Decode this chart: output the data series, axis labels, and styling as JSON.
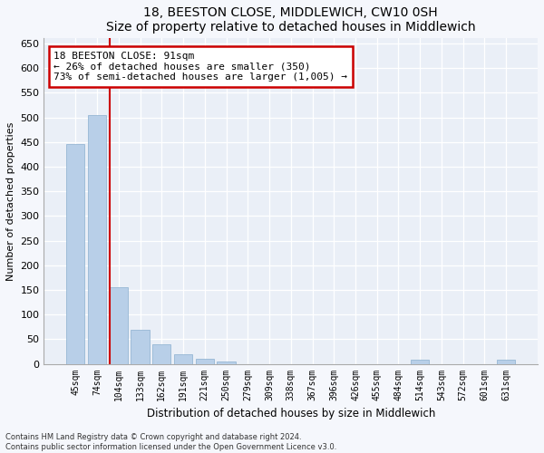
{
  "title1": "18, BEESTON CLOSE, MIDDLEWICH, CW10 0SH",
  "title2": "Size of property relative to detached houses in Middlewich",
  "xlabel": "Distribution of detached houses by size in Middlewich",
  "ylabel": "Number of detached properties",
  "categories": [
    "45sqm",
    "74sqm",
    "104sqm",
    "133sqm",
    "162sqm",
    "191sqm",
    "221sqm",
    "250sqm",
    "279sqm",
    "309sqm",
    "338sqm",
    "367sqm",
    "396sqm",
    "426sqm",
    "455sqm",
    "484sqm",
    "514sqm",
    "543sqm",
    "572sqm",
    "601sqm",
    "631sqm"
  ],
  "values": [
    445,
    505,
    155,
    70,
    40,
    20,
    10,
    5,
    0,
    0,
    0,
    0,
    0,
    0,
    0,
    0,
    8,
    0,
    0,
    0,
    8
  ],
  "bar_color": "#b8cfe8",
  "bar_edge_color": "#8aafcf",
  "vline_color": "#cc0000",
  "annotation_line1": "18 BEESTON CLOSE: 91sqm",
  "annotation_line2": "← 26% of detached houses are smaller (350)",
  "annotation_line3": "73% of semi-detached houses are larger (1,005) →",
  "annotation_box_color": "#ffffff",
  "annotation_box_edge": "#cc0000",
  "ylim": [
    0,
    660
  ],
  "yticks": [
    0,
    50,
    100,
    150,
    200,
    250,
    300,
    350,
    400,
    450,
    500,
    550,
    600,
    650
  ],
  "footer1": "Contains HM Land Registry data © Crown copyright and database right 2024.",
  "footer2": "Contains public sector information licensed under the Open Government Licence v3.0.",
  "bg_color": "#eaeff7",
  "plot_bg_color": "#eaeff7",
  "fig_bg_color": "#f5f7fc"
}
